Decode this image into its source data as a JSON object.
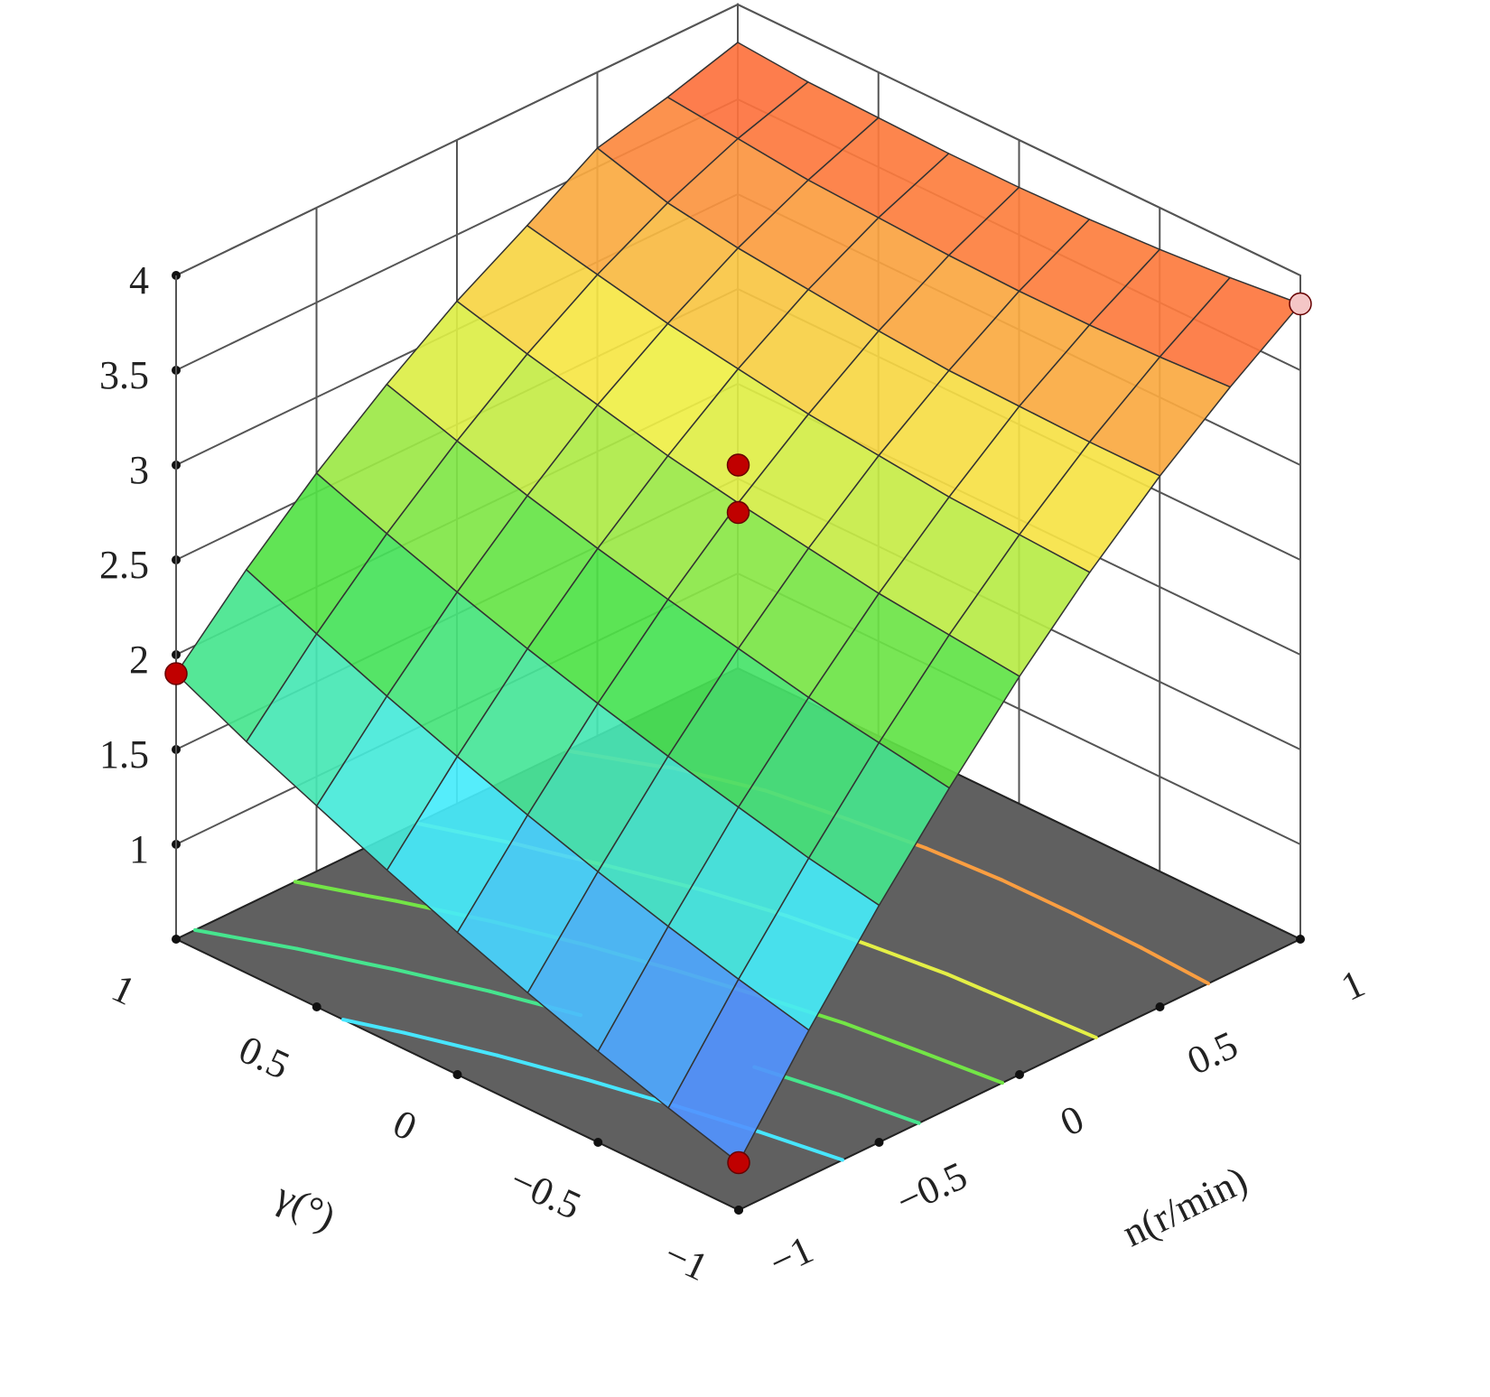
{
  "chart_data": {
    "type": "surface3d",
    "x_label": "n(r/min)",
    "y_label": "γ(°)",
    "x": [
      -1,
      -0.75,
      -0.5,
      -0.25,
      0,
      0.25,
      0.5,
      0.75,
      1
    ],
    "y": [
      -1,
      -0.75,
      -0.5,
      -0.25,
      0,
      0.25,
      0.5,
      0.75,
      1
    ],
    "z": [
      [
        0.75,
        1.27,
        1.75,
        2.19,
        2.6,
        2.97,
        3.3,
        3.59,
        3.85
      ],
      [
        0.86,
        1.36,
        1.82,
        2.25,
        2.64,
        2.99,
        3.3,
        3.57,
        3.81
      ],
      [
        0.98,
        1.46,
        1.91,
        2.31,
        2.68,
        3.01,
        3.31,
        3.56,
        3.78
      ],
      [
        1.11,
        1.57,
        2.0,
        2.39,
        2.74,
        3.05,
        3.32,
        3.56,
        3.76
      ],
      [
        1.25,
        1.69,
        2.1,
        2.47,
        2.8,
        3.09,
        3.35,
        3.57,
        3.75
      ],
      [
        1.4,
        1.82,
        2.21,
        2.56,
        2.87,
        3.15,
        3.39,
        3.59,
        3.75
      ],
      [
        1.56,
        1.96,
        2.33,
        2.66,
        2.96,
        3.21,
        3.43,
        3.61,
        3.76
      ],
      [
        1.72,
        2.11,
        2.46,
        2.77,
        3.05,
        3.29,
        3.49,
        3.65,
        3.77
      ],
      [
        1.9,
        2.27,
        2.6,
        2.89,
        3.15,
        3.37,
        3.6,
        3.69,
        3.8
      ]
    ],
    "xlim": [
      -1,
      1
    ],
    "ylim": [
      -1,
      1
    ],
    "zlim": [
      0.5,
      4
    ],
    "xticks": [
      {
        "value": -1,
        "label": "−1"
      },
      {
        "value": -0.5,
        "label": "−0.5"
      },
      0,
      0.5,
      1
    ],
    "yticks": [
      {
        "value": -1,
        "label": "−1"
      },
      {
        "value": -0.5,
        "label": "−0.5"
      },
      0,
      0.5,
      1
    ],
    "zticks": [
      1,
      1.5,
      2,
      2.5,
      3,
      3.5,
      4
    ],
    "contour_levels": [
      1.5,
      2,
      2.5,
      3,
      3.5
    ],
    "floor_color": "#606060",
    "points": {
      "x": [
        -1,
        0,
        0,
        -1,
        1
      ],
      "y": [
        1,
        0,
        0,
        -1,
        -1
      ],
      "z": [
        1.9,
        3.0,
        2.75,
        0.75,
        3.85
      ],
      "colors": [
        "#c00000",
        "#c00000",
        "#c00000",
        "#c00000",
        "#f4c6c6"
      ]
    }
  }
}
